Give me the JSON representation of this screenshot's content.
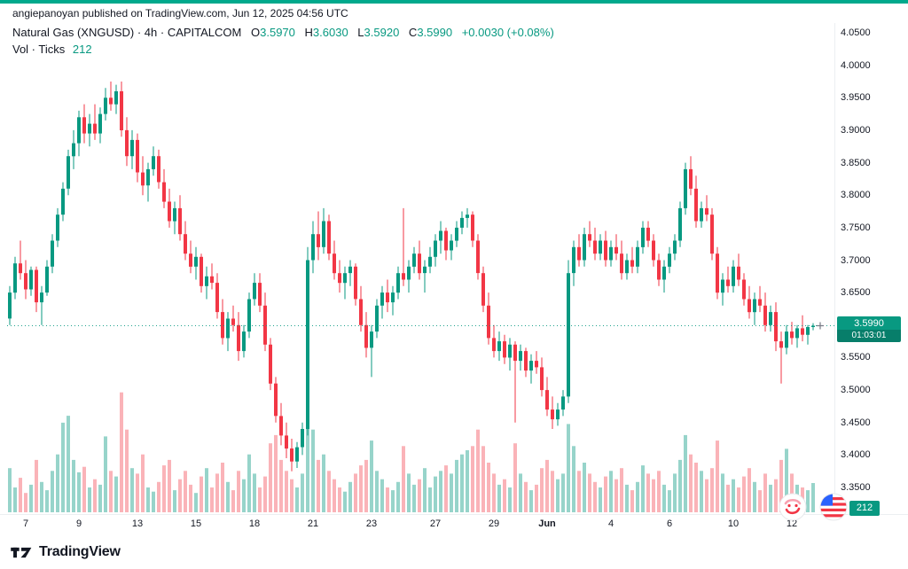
{
  "attribution": {
    "text": "angiepanoyan published on TradingView.com, Jun 12, 2025 04:56 UTC"
  },
  "legend": {
    "symbol_title": "Natural Gas (XNGUSD) · 4h · CAPITALCOM",
    "open_label": "O",
    "open_value": "3.5970",
    "high_label": "H",
    "high_value": "3.6030",
    "low_label": "L",
    "low_value": "3.5920",
    "close_label": "C",
    "close_value": "3.5990",
    "change": "+0.0030 (+0.08%)",
    "volume_label": "Vol · Ticks",
    "volume_value": "212"
  },
  "footer": {
    "brand": "TradingView"
  },
  "chart_data": {
    "type": "candlestick",
    "symbol": "Natural Gas (XNGUSD)",
    "interval": "4h",
    "exchange": "CAPITALCOM",
    "ohlc_display": {
      "open": 3.597,
      "high": 3.603,
      "low": 3.592,
      "close": 3.599,
      "change": "+0.0030 (+0.08%)"
    },
    "last_price": 3.599,
    "last_price_label": "3.5990",
    "countdown": "01:03:01",
    "vol_label": "212",
    "ylim": [
      3.35,
      4.05
    ],
    "grid": false,
    "y_ticks": [
      "4.0500",
      "4.0000",
      "3.9500",
      "3.9000",
      "3.8500",
      "3.8000",
      "3.7500",
      "3.7000",
      "3.6500",
      "3.6000",
      "3.5500",
      "3.5000",
      "3.4500",
      "3.4000",
      "3.3500"
    ],
    "x_ticks": [
      {
        "label": "7",
        "index": 3
      },
      {
        "label": "9",
        "index": 13
      },
      {
        "label": "13",
        "index": 24
      },
      {
        "label": "15",
        "index": 35
      },
      {
        "label": "18",
        "index": 46
      },
      {
        "label": "21",
        "index": 57
      },
      {
        "label": "23",
        "index": 68
      },
      {
        "label": "27",
        "index": 80
      },
      {
        "label": "29",
        "index": 91
      },
      {
        "label": "Jun",
        "index": 101,
        "bold": true
      },
      {
        "label": "4",
        "index": 113
      },
      {
        "label": "6",
        "index": 124
      },
      {
        "label": "10",
        "index": 136
      },
      {
        "label": "12",
        "index": 147
      }
    ],
    "candles": [
      [
        3.61,
        3.66,
        3.6,
        3.65,
        320
      ],
      [
        3.65,
        3.705,
        3.64,
        3.695,
        180
      ],
      [
        3.695,
        3.73,
        3.67,
        3.68,
        250
      ],
      [
        3.68,
        3.7,
        3.64,
        3.655,
        140
      ],
      [
        3.655,
        3.69,
        3.645,
        3.685,
        200
      ],
      [
        3.685,
        3.69,
        3.62,
        3.635,
        380
      ],
      [
        3.635,
        3.66,
        3.6,
        3.65,
        220
      ],
      [
        3.65,
        3.7,
        3.645,
        3.69,
        160
      ],
      [
        3.69,
        3.74,
        3.68,
        3.73,
        300
      ],
      [
        3.73,
        3.78,
        3.72,
        3.77,
        420
      ],
      [
        3.77,
        3.82,
        3.76,
        3.81,
        650
      ],
      [
        3.81,
        3.87,
        3.8,
        3.86,
        700
      ],
      [
        3.86,
        3.9,
        3.84,
        3.88,
        380
      ],
      [
        3.88,
        3.93,
        3.86,
        3.92,
        290
      ],
      [
        3.92,
        3.94,
        3.88,
        3.895,
        330
      ],
      [
        3.895,
        3.925,
        3.875,
        3.91,
        180
      ],
      [
        3.91,
        3.94,
        3.885,
        3.895,
        240
      ],
      [
        3.895,
        3.935,
        3.88,
        3.925,
        200
      ],
      [
        3.925,
        3.965,
        3.915,
        3.95,
        550
      ],
      [
        3.95,
        3.975,
        3.93,
        3.94,
        300
      ],
      [
        3.94,
        3.97,
        3.925,
        3.96,
        260
      ],
      [
        3.96,
        3.975,
        3.89,
        3.9,
        870
      ],
      [
        3.9,
        3.92,
        3.845,
        3.86,
        600
      ],
      [
        3.86,
        3.9,
        3.84,
        3.885,
        320
      ],
      [
        3.885,
        3.895,
        3.82,
        3.835,
        280
      ],
      [
        3.835,
        3.86,
        3.8,
        3.815,
        420
      ],
      [
        3.815,
        3.85,
        3.79,
        3.84,
        180
      ],
      [
        3.84,
        3.875,
        3.83,
        3.86,
        150
      ],
      [
        3.86,
        3.87,
        3.81,
        3.82,
        220
      ],
      [
        3.82,
        3.84,
        3.78,
        3.79,
        340
      ],
      [
        3.79,
        3.81,
        3.75,
        3.76,
        380
      ],
      [
        3.76,
        3.79,
        3.74,
        3.78,
        160
      ],
      [
        3.78,
        3.8,
        3.73,
        3.74,
        240
      ],
      [
        3.74,
        3.76,
        3.7,
        3.71,
        300
      ],
      [
        3.71,
        3.73,
        3.68,
        3.69,
        200
      ],
      [
        3.69,
        3.72,
        3.67,
        3.705,
        140
      ],
      [
        3.705,
        3.71,
        3.65,
        3.66,
        260
      ],
      [
        3.66,
        3.69,
        3.64,
        3.675,
        320
      ],
      [
        3.675,
        3.695,
        3.655,
        3.665,
        180
      ],
      [
        3.665,
        3.68,
        3.61,
        3.62,
        280
      ],
      [
        3.62,
        3.64,
        3.57,
        3.58,
        360
      ],
      [
        3.58,
        3.62,
        3.56,
        3.61,
        220
      ],
      [
        3.61,
        3.63,
        3.59,
        3.6,
        160
      ],
      [
        3.6,
        3.62,
        3.545,
        3.56,
        300
      ],
      [
        3.56,
        3.6,
        3.55,
        3.59,
        240
      ],
      [
        3.59,
        3.65,
        3.58,
        3.64,
        420
      ],
      [
        3.64,
        3.68,
        3.63,
        3.665,
        280
      ],
      [
        3.665,
        3.68,
        3.62,
        3.63,
        180
      ],
      [
        3.63,
        3.65,
        3.56,
        3.57,
        260
      ],
      [
        3.57,
        3.58,
        3.5,
        3.51,
        500
      ],
      [
        3.51,
        3.52,
        3.45,
        3.46,
        560
      ],
      [
        3.46,
        3.48,
        3.415,
        3.43,
        380
      ],
      [
        3.43,
        3.45,
        3.395,
        3.41,
        300
      ],
      [
        3.41,
        3.425,
        3.375,
        3.39,
        240
      ],
      [
        3.39,
        3.42,
        3.38,
        3.412,
        180
      ],
      [
        3.412,
        3.45,
        3.4,
        3.44,
        280
      ],
      [
        3.44,
        3.72,
        3.43,
        3.7,
        690
      ],
      [
        3.7,
        3.76,
        3.68,
        3.74,
        600
      ],
      [
        3.74,
        3.775,
        3.7,
        3.72,
        380
      ],
      [
        3.72,
        3.78,
        3.71,
        3.76,
        420
      ],
      [
        3.76,
        3.77,
        3.7,
        3.71,
        300
      ],
      [
        3.71,
        3.73,
        3.67,
        3.68,
        240
      ],
      [
        3.68,
        3.7,
        3.65,
        3.665,
        180
      ],
      [
        3.665,
        3.69,
        3.64,
        3.68,
        150
      ],
      [
        3.68,
        3.7,
        3.66,
        3.69,
        220
      ],
      [
        3.69,
        3.695,
        3.63,
        3.64,
        280
      ],
      [
        3.64,
        3.66,
        3.59,
        3.6,
        340
      ],
      [
        3.6,
        3.62,
        3.55,
        3.565,
        380
      ],
      [
        3.565,
        3.6,
        3.52,
        3.59,
        520
      ],
      [
        3.59,
        3.64,
        3.58,
        3.63,
        300
      ],
      [
        3.63,
        3.66,
        3.61,
        3.65,
        240
      ],
      [
        3.65,
        3.67,
        3.62,
        3.635,
        180
      ],
      [
        3.635,
        3.66,
        3.615,
        3.65,
        160
      ],
      [
        3.65,
        3.69,
        3.64,
        3.68,
        220
      ],
      [
        3.68,
        3.78,
        3.66,
        3.67,
        480
      ],
      [
        3.67,
        3.7,
        3.65,
        3.69,
        280
      ],
      [
        3.69,
        3.72,
        3.68,
        3.71,
        200
      ],
      [
        3.71,
        3.73,
        3.67,
        3.68,
        240
      ],
      [
        3.68,
        3.7,
        3.65,
        3.69,
        320
      ],
      [
        3.69,
        3.72,
        3.68,
        3.705,
        180
      ],
      [
        3.705,
        3.74,
        3.69,
        3.73,
        260
      ],
      [
        3.73,
        3.76,
        3.71,
        3.745,
        300
      ],
      [
        3.745,
        3.75,
        3.7,
        3.715,
        340
      ],
      [
        3.715,
        3.74,
        3.7,
        3.73,
        280
      ],
      [
        3.73,
        3.76,
        3.72,
        3.75,
        380
      ],
      [
        3.75,
        3.775,
        3.74,
        3.765,
        420
      ],
      [
        3.765,
        3.78,
        3.75,
        3.77,
        450
      ],
      [
        3.77,
        3.775,
        3.72,
        3.73,
        480
      ],
      [
        3.73,
        3.74,
        3.67,
        3.68,
        600
      ],
      [
        3.68,
        3.69,
        3.62,
        3.63,
        480
      ],
      [
        3.63,
        3.65,
        3.57,
        3.58,
        360
      ],
      [
        3.58,
        3.6,
        3.55,
        3.56,
        280
      ],
      [
        3.56,
        3.59,
        3.545,
        3.575,
        200
      ],
      [
        3.575,
        3.585,
        3.54,
        3.55,
        240
      ],
      [
        3.55,
        3.58,
        3.53,
        3.57,
        180
      ],
      [
        3.57,
        3.575,
        3.45,
        3.545,
        500
      ],
      [
        3.545,
        3.57,
        3.53,
        3.56,
        280
      ],
      [
        3.56,
        3.565,
        3.52,
        3.53,
        220
      ],
      [
        3.53,
        3.555,
        3.51,
        3.545,
        160
      ],
      [
        3.545,
        3.56,
        3.525,
        3.535,
        200
      ],
      [
        3.535,
        3.55,
        3.49,
        3.5,
        320
      ],
      [
        3.5,
        3.52,
        3.46,
        3.47,
        380
      ],
      [
        3.47,
        3.49,
        3.44,
        3.455,
        300
      ],
      [
        3.455,
        3.48,
        3.445,
        3.47,
        240
      ],
      [
        3.47,
        3.5,
        3.46,
        3.49,
        280
      ],
      [
        3.49,
        3.7,
        3.48,
        3.68,
        640
      ],
      [
        3.68,
        3.73,
        3.66,
        3.72,
        480
      ],
      [
        3.72,
        3.74,
        3.69,
        3.7,
        300
      ],
      [
        3.7,
        3.75,
        3.69,
        3.74,
        360
      ],
      [
        3.74,
        3.76,
        3.72,
        3.73,
        280
      ],
      [
        3.73,
        3.75,
        3.7,
        3.71,
        220
      ],
      [
        3.71,
        3.74,
        3.7,
        3.73,
        180
      ],
      [
        3.73,
        3.745,
        3.69,
        3.7,
        260
      ],
      [
        3.7,
        3.73,
        3.69,
        3.72,
        300
      ],
      [
        3.72,
        3.74,
        3.7,
        3.71,
        240
      ],
      [
        3.71,
        3.73,
        3.67,
        3.68,
        320
      ],
      [
        3.68,
        3.71,
        3.67,
        3.7,
        200
      ],
      [
        3.7,
        3.72,
        3.68,
        3.69,
        160
      ],
      [
        3.69,
        3.73,
        3.68,
        3.72,
        220
      ],
      [
        3.72,
        3.76,
        3.71,
        3.75,
        340
      ],
      [
        3.75,
        3.76,
        3.72,
        3.73,
        280
      ],
      [
        3.73,
        3.74,
        3.69,
        3.7,
        240
      ],
      [
        3.7,
        3.71,
        3.66,
        3.67,
        300
      ],
      [
        3.67,
        3.7,
        3.65,
        3.69,
        200
      ],
      [
        3.69,
        3.72,
        3.68,
        3.71,
        160
      ],
      [
        3.71,
        3.74,
        3.7,
        3.73,
        280
      ],
      [
        3.73,
        3.79,
        3.72,
        3.78,
        380
      ],
      [
        3.78,
        3.85,
        3.77,
        3.84,
        560
      ],
      [
        3.84,
        3.86,
        3.8,
        3.81,
        420
      ],
      [
        3.81,
        3.83,
        3.75,
        3.76,
        360
      ],
      [
        3.76,
        3.79,
        3.75,
        3.78,
        300
      ],
      [
        3.78,
        3.8,
        3.76,
        3.77,
        240
      ],
      [
        3.77,
        3.78,
        3.7,
        3.71,
        320
      ],
      [
        3.71,
        3.72,
        3.64,
        3.65,
        520
      ],
      [
        3.65,
        3.68,
        3.63,
        3.67,
        280
      ],
      [
        3.67,
        3.69,
        3.65,
        3.66,
        200
      ],
      [
        3.66,
        3.7,
        3.65,
        3.69,
        240
      ],
      [
        3.69,
        3.71,
        3.66,
        3.67,
        180
      ],
      [
        3.67,
        3.68,
        3.63,
        3.64,
        260
      ],
      [
        3.64,
        3.66,
        3.61,
        3.62,
        320
      ],
      [
        3.62,
        3.65,
        3.6,
        3.64,
        220
      ],
      [
        3.64,
        3.66,
        3.62,
        3.63,
        160
      ],
      [
        3.63,
        3.65,
        3.59,
        3.6,
        280
      ],
      [
        3.6,
        3.63,
        3.59,
        3.62,
        200
      ],
      [
        3.62,
        3.635,
        3.56,
        3.575,
        240
      ],
      [
        3.575,
        3.59,
        3.51,
        3.565,
        380
      ],
      [
        3.565,
        3.6,
        3.555,
        3.59,
        460
      ],
      [
        3.59,
        3.605,
        3.57,
        3.58,
        280
      ],
      [
        3.58,
        3.6,
        3.565,
        3.595,
        200
      ],
      [
        3.595,
        3.615,
        3.575,
        3.585,
        180
      ],
      [
        3.585,
        3.6,
        3.57,
        3.597,
        160
      ],
      [
        3.597,
        3.603,
        3.592,
        3.599,
        212
      ]
    ],
    "colors": {
      "up": "#089981",
      "down": "#F23645",
      "vol_up": "rgba(8,153,129,0.42)",
      "vol_down": "rgba(242,54,69,0.38)",
      "accent_bar": "#00a98c",
      "countdown_bg": "#077E6A",
      "axis_text": "#131722",
      "muted": "#787b86"
    }
  }
}
